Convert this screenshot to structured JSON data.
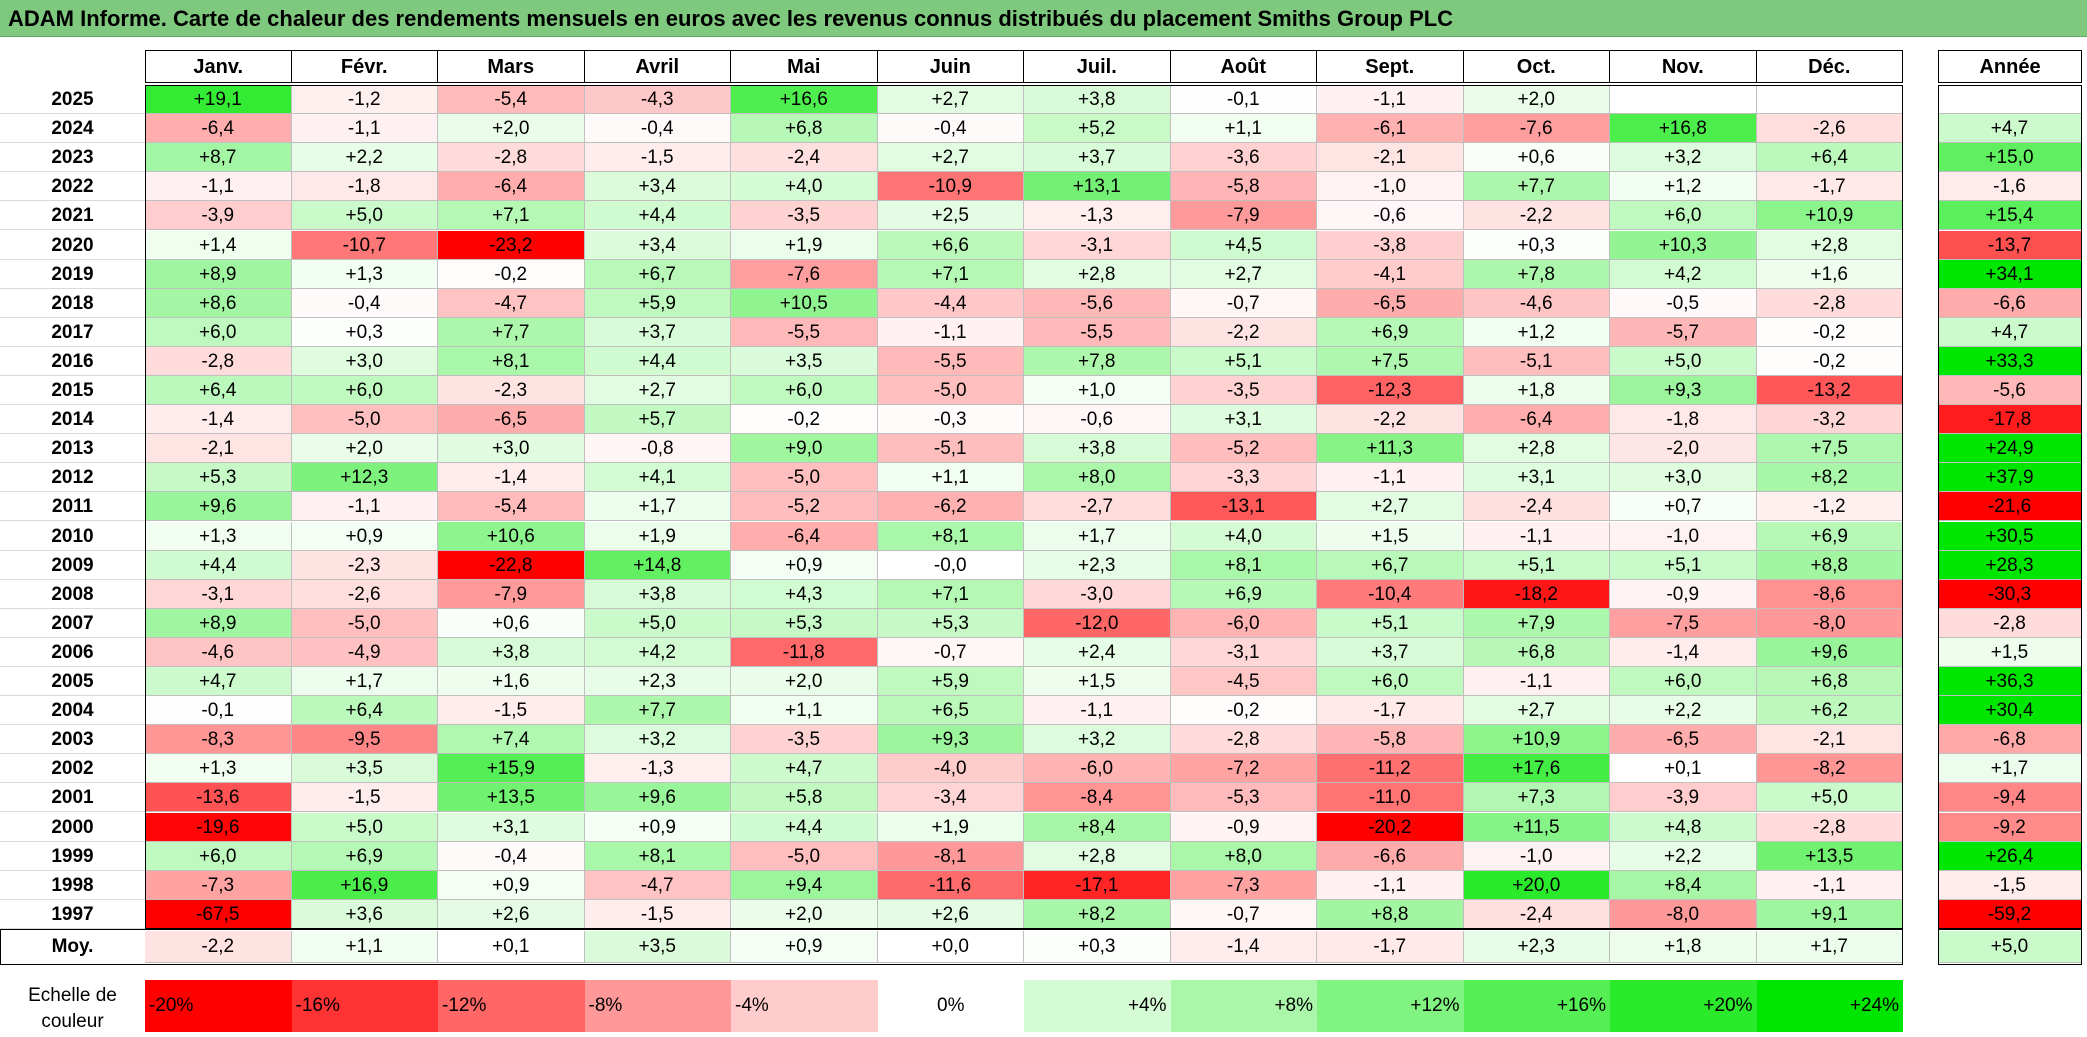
{
  "title": "ADAM Informe. Carte de chaleur des rendements mensuels en euros avec les revenus connus distribués du placement Smiths Group PLC",
  "chart_data": {
    "type": "heatmap",
    "months": [
      "Janv.",
      "Févr.",
      "Mars",
      "Avril",
      "Mai",
      "Juin",
      "Juil.",
      "Août",
      "Sept.",
      "Oct.",
      "Nov.",
      "Déc."
    ],
    "year_header": "Année",
    "rows": [
      {
        "year": "2025",
        "values": [
          "+19,1",
          "-1,2",
          "-5,4",
          "-4,3",
          "+16,6",
          "+2,7",
          "+3,8",
          "-0,1",
          "-1,1",
          "+2,0",
          "",
          ""
        ],
        "annual": ""
      },
      {
        "year": "2024",
        "values": [
          "-6,4",
          "-1,1",
          "+2,0",
          "-0,4",
          "+6,8",
          "-0,4",
          "+5,2",
          "+1,1",
          "-6,1",
          "-7,6",
          "+16,8",
          "-2,6"
        ],
        "annual": "+4,7"
      },
      {
        "year": "2023",
        "values": [
          "+8,7",
          "+2,2",
          "-2,8",
          "-1,5",
          "-2,4",
          "+2,7",
          "+3,7",
          "-3,6",
          "-2,1",
          "+0,6",
          "+3,2",
          "+6,4"
        ],
        "annual": "+15,0"
      },
      {
        "year": "2022",
        "values": [
          "-1,1",
          "-1,8",
          "-6,4",
          "+3,4",
          "+4,0",
          "-10,9",
          "+13,1",
          "-5,8",
          "-1,0",
          "+7,7",
          "+1,2",
          "-1,7"
        ],
        "annual": "-1,6"
      },
      {
        "year": "2021",
        "values": [
          "-3,9",
          "+5,0",
          "+7,1",
          "+4,4",
          "-3,5",
          "+2,5",
          "-1,3",
          "-7,9",
          "-0,6",
          "-2,2",
          "+6,0",
          "+10,9"
        ],
        "annual": "+15,4"
      },
      {
        "year": "2020",
        "values": [
          "+1,4",
          "-10,7",
          "-23,2",
          "+3,4",
          "+1,9",
          "+6,6",
          "-3,1",
          "+4,5",
          "-3,8",
          "+0,3",
          "+10,3",
          "+2,8"
        ],
        "annual": "-13,7"
      },
      {
        "year": "2019",
        "values": [
          "+8,9",
          "+1,3",
          "-0,2",
          "+6,7",
          "-7,6",
          "+7,1",
          "+2,8",
          "+2,7",
          "-4,1",
          "+7,8",
          "+4,2",
          "+1,6"
        ],
        "annual": "+34,1"
      },
      {
        "year": "2018",
        "values": [
          "+8,6",
          "-0,4",
          "-4,7",
          "+5,9",
          "+10,5",
          "-4,4",
          "-5,6",
          "-0,7",
          "-6,5",
          "-4,6",
          "-0,5",
          "-2,8"
        ],
        "annual": "-6,6"
      },
      {
        "year": "2017",
        "values": [
          "+6,0",
          "+0,3",
          "+7,7",
          "+3,7",
          "-5,5",
          "-1,1",
          "-5,5",
          "-2,2",
          "+6,9",
          "+1,2",
          "-5,7",
          "-0,2"
        ],
        "annual": "+4,7"
      },
      {
        "year": "2016",
        "values": [
          "-2,8",
          "+3,0",
          "+8,1",
          "+4,4",
          "+3,5",
          "-5,5",
          "+7,8",
          "+5,1",
          "+7,5",
          "-5,1",
          "+5,0",
          "-0,2"
        ],
        "annual": "+33,3"
      },
      {
        "year": "2015",
        "values": [
          "+6,4",
          "+6,0",
          "-2,3",
          "+2,7",
          "+6,0",
          "-5,0",
          "+1,0",
          "-3,5",
          "-12,3",
          "+1,8",
          "+9,3",
          "-13,2"
        ],
        "annual": "-5,6"
      },
      {
        "year": "2014",
        "values": [
          "-1,4",
          "-5,0",
          "-6,5",
          "+5,7",
          "-0,2",
          "-0,3",
          "-0,6",
          "+3,1",
          "-2,2",
          "-6,4",
          "-1,8",
          "-3,2"
        ],
        "annual": "-17,8"
      },
      {
        "year": "2013",
        "values": [
          "-2,1",
          "+2,0",
          "+3,0",
          "-0,8",
          "+9,0",
          "-5,1",
          "+3,8",
          "-5,2",
          "+11,3",
          "+2,8",
          "-2,0",
          "+7,5"
        ],
        "annual": "+24,9"
      },
      {
        "year": "2012",
        "values": [
          "+5,3",
          "+12,3",
          "-1,4",
          "+4,1",
          "-5,0",
          "+1,1",
          "+8,0",
          "-3,3",
          "-1,1",
          "+3,1",
          "+3,0",
          "+8,2"
        ],
        "annual": "+37,9"
      },
      {
        "year": "2011",
        "values": [
          "+9,6",
          "-1,1",
          "-5,4",
          "+1,7",
          "-5,2",
          "-6,2",
          "-2,7",
          "-13,1",
          "+2,7",
          "-2,4",
          "+0,7",
          "-1,2"
        ],
        "annual": "-21,6"
      },
      {
        "year": "2010",
        "values": [
          "+1,3",
          "+0,9",
          "+10,6",
          "+1,9",
          "-6,4",
          "+8,1",
          "+1,7",
          "+4,0",
          "+1,5",
          "-1,1",
          "-1,0",
          "+6,9"
        ],
        "annual": "+30,5"
      },
      {
        "year": "2009",
        "values": [
          "+4,4",
          "-2,3",
          "-22,8",
          "+14,8",
          "+0,9",
          "-0,0",
          "+2,3",
          "+8,1",
          "+6,7",
          "+5,1",
          "+5,1",
          "+8,8"
        ],
        "annual": "+28,3"
      },
      {
        "year": "2008",
        "values": [
          "-3,1",
          "-2,6",
          "-7,9",
          "+3,8",
          "+4,3",
          "+7,1",
          "-3,0",
          "+6,9",
          "-10,4",
          "-18,2",
          "-0,9",
          "-8,6"
        ],
        "annual": "-30,3"
      },
      {
        "year": "2007",
        "values": [
          "+8,9",
          "-5,0",
          "+0,6",
          "+5,0",
          "+5,3",
          "+5,3",
          "-12,0",
          "-6,0",
          "+5,1",
          "+7,9",
          "-7,5",
          "-8,0"
        ],
        "annual": "-2,8"
      },
      {
        "year": "2006",
        "values": [
          "-4,6",
          "-4,9",
          "+3,8",
          "+4,2",
          "-11,8",
          "-0,7",
          "+2,4",
          "-3,1",
          "+3,7",
          "+6,8",
          "-1,4",
          "+9,6"
        ],
        "annual": "+1,5"
      },
      {
        "year": "2005",
        "values": [
          "+4,7",
          "+1,7",
          "+1,6",
          "+2,3",
          "+2,0",
          "+5,9",
          "+1,5",
          "-4,5",
          "+6,0",
          "-1,1",
          "+6,0",
          "+6,8"
        ],
        "annual": "+36,3"
      },
      {
        "year": "2004",
        "values": [
          "-0,1",
          "+6,4",
          "-1,5",
          "+7,7",
          "+1,1",
          "+6,5",
          "-1,1",
          "-0,2",
          "-1,7",
          "+2,7",
          "+2,2",
          "+6,2"
        ],
        "annual": "+30,4"
      },
      {
        "year": "2003",
        "values": [
          "-8,3",
          "-9,5",
          "+7,4",
          "+3,2",
          "-3,5",
          "+9,3",
          "+3,2",
          "-2,8",
          "-5,8",
          "+10,9",
          "-6,5",
          "-2,1"
        ],
        "annual": "-6,8"
      },
      {
        "year": "2002",
        "values": [
          "+1,3",
          "+3,5",
          "+15,9",
          "-1,3",
          "+4,7",
          "-4,0",
          "-6,0",
          "-7,2",
          "-11,2",
          "+17,6",
          "+0,1",
          "-8,2"
        ],
        "annual": "+1,7"
      },
      {
        "year": "2001",
        "values": [
          "-13,6",
          "-1,5",
          "+13,5",
          "+9,6",
          "+5,8",
          "-3,4",
          "-8,4",
          "-5,3",
          "-11,0",
          "+7,3",
          "-3,9",
          "+5,0"
        ],
        "annual": "-9,4"
      },
      {
        "year": "2000",
        "values": [
          "-19,6",
          "+5,0",
          "+3,1",
          "+0,9",
          "+4,4",
          "+1,9",
          "+8,4",
          "-0,9",
          "-20,2",
          "+11,5",
          "+4,8",
          "-2,8"
        ],
        "annual": "-9,2"
      },
      {
        "year": "1999",
        "values": [
          "+6,0",
          "+6,9",
          "-0,4",
          "+8,1",
          "-5,0",
          "-8,1",
          "+2,8",
          "+8,0",
          "-6,6",
          "-1,0",
          "+2,2",
          "+13,5"
        ],
        "annual": "+26,4"
      },
      {
        "year": "1998",
        "values": [
          "-7,3",
          "+16,9",
          "+0,9",
          "-4,7",
          "+9,4",
          "-11,6",
          "-17,1",
          "-7,3",
          "-1,1",
          "+20,0",
          "+8,4",
          "-1,1"
        ],
        "annual": "-1,5"
      },
      {
        "year": "1997",
        "values": [
          "-67,5",
          "+3,6",
          "+2,6",
          "-1,5",
          "+2,0",
          "+2,6",
          "+8,2",
          "-0,7",
          "+8,8",
          "-2,4",
          "-8,0",
          "+9,1"
        ],
        "annual": "-59,2"
      }
    ],
    "average": {
      "label": "Moy.",
      "values": [
        "-2,2",
        "+1,1",
        "+0,1",
        "+3,5",
        "+0,9",
        "+0,0",
        "+0,3",
        "-1,4",
        "-1,7",
        "+2,3",
        "+1,8",
        "+1,7"
      ],
      "annual": "+5,0"
    },
    "scale": {
      "label": "Echelle de couleur",
      "steps": [
        {
          "label": "-20%",
          "value": -20
        },
        {
          "label": "-16%",
          "value": -16
        },
        {
          "label": "-12%",
          "value": -12
        },
        {
          "label": "-8%",
          "value": -8
        },
        {
          "label": "-4%",
          "value": -4
        },
        {
          "label": "0%",
          "value": 0
        },
        {
          "label": "+4%",
          "value": 4
        },
        {
          "label": "+8%",
          "value": 8
        },
        {
          "label": "+12%",
          "value": 12
        },
        {
          "label": "+16%",
          "value": 16
        },
        {
          "label": "+20%",
          "value": 20
        },
        {
          "label": "+24%",
          "value": 24
        }
      ]
    },
    "colors": {
      "negative": "#ff0000",
      "neutral": "#ffffff",
      "positive": "#00e600"
    }
  }
}
